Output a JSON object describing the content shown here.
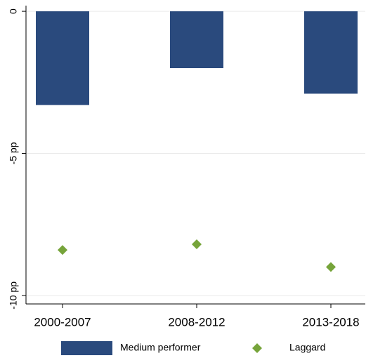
{
  "chart_data": {
    "type": "bar",
    "categories": [
      "2000-2007",
      "2008-2012",
      "2013-2018"
    ],
    "series": [
      {
        "name": "Medium performer",
        "type": "bar",
        "color": "#2a4a7d",
        "values": [
          -3.3,
          -2.0,
          -2.9
        ]
      },
      {
        "name": "Laggard",
        "type": "scatter",
        "color": "#76a43a",
        "values": [
          -8.4,
          -8.2,
          -9.0
        ]
      }
    ],
    "ylim": [
      -10.3,
      0.2
    ],
    "yticks": [
      0,
      {
        "value": -5,
        "label": "-5 pp"
      },
      {
        "value": -10,
        "label": "-10 pp"
      }
    ],
    "grid": true
  }
}
